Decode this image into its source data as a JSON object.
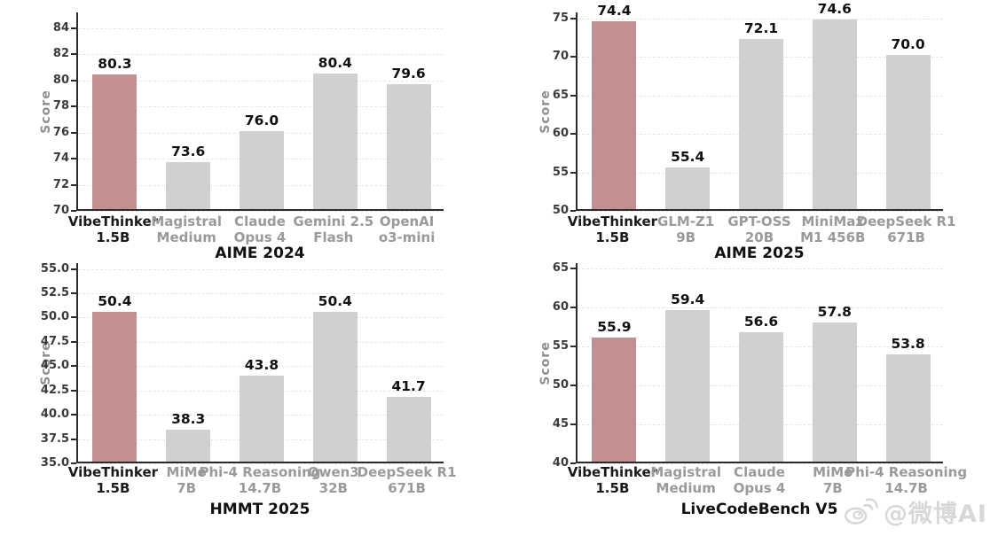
{
  "colors": {
    "background": "#ffffff",
    "highlight_bar": "#c29091",
    "default_bar": "#d0d0d0",
    "grid": "#e6e6e6",
    "axis": "#2b2b2b",
    "tick_label": "#3a3a3a",
    "axis_title": "#8f8f8f",
    "value_label": "#111111",
    "category_highlight": "#1a1a1a",
    "category_default": "#9a9a9a",
    "chart_title": "#111111",
    "watermark": "#d8d8d8"
  },
  "watermark": {
    "icon": "weibo-logo-icon",
    "text": "@微博AI"
  },
  "chart_data": [
    {
      "type": "bar",
      "title": "AIME 2024",
      "ylabel": "Score",
      "categories": [
        "VibeThinker\n1.5B",
        "Magistral\nMedium",
        "Claude\nOpus 4",
        "Gemini 2.5\nFlash",
        "OpenAI\no3-mini"
      ],
      "values": [
        80.3,
        73.6,
        76.0,
        80.4,
        79.6
      ],
      "value_labels": [
        "80.3",
        "73.6",
        "76.0",
        "80.4",
        "79.6"
      ],
      "ytick_values": [
        70,
        72,
        74,
        76,
        78,
        80,
        82,
        84
      ],
      "ytick_labels": [
        "70",
        "72",
        "74",
        "76",
        "78",
        "80",
        "82",
        "84"
      ],
      "ylim": [
        70,
        85.2
      ],
      "highlight_index": 0,
      "grid": true,
      "legend": null
    },
    {
      "type": "bar",
      "title": "AIME 2025",
      "ylabel": "Score",
      "categories": [
        "VibeThinker\n1.5B",
        "GLM-Z1\n9B",
        "GPT-OSS\n20B",
        "MiniMax\nM1 456B",
        "DeepSeek R1\n671B"
      ],
      "values": [
        74.4,
        55.4,
        72.1,
        74.6,
        70.0
      ],
      "value_labels": [
        "74.4",
        "55.4",
        "72.1",
        "74.6",
        "70.0"
      ],
      "ytick_values": [
        50,
        55,
        60,
        65,
        70,
        75
      ],
      "ytick_labels": [
        "50",
        "55",
        "60",
        "65",
        "70",
        "75"
      ],
      "ylim": [
        50,
        75.8
      ],
      "highlight_index": 0,
      "grid": true,
      "legend": null
    },
    {
      "type": "bar",
      "title": "HMMT 2025",
      "ylabel": "Score",
      "categories": [
        "VibeThinker\n1.5B",
        "MiMo\n7B",
        "Phi-4 Reasoning\n14.7B",
        "Qwen3\n32B",
        "DeepSeek R1\n671B"
      ],
      "values": [
        50.4,
        38.3,
        43.8,
        50.4,
        41.7
      ],
      "value_labels": [
        "50.4",
        "38.3",
        "43.8",
        "50.4",
        "41.7"
      ],
      "ytick_values": [
        35,
        37.5,
        40,
        42.5,
        45,
        47.5,
        50,
        52.5,
        55
      ],
      "ytick_labels": [
        "35.0",
        "37.5",
        "40.0",
        "42.5",
        "45.0",
        "47.5",
        "50.0",
        "52.5",
        "55.0"
      ],
      "ylim": [
        35,
        55.6
      ],
      "highlight_index": 0,
      "grid": true,
      "legend": null
    },
    {
      "type": "bar",
      "title": "LiveCodeBench V5",
      "ylabel": "Score",
      "categories": [
        "VibeThinker\n1.5B",
        "Magistral\nMedium",
        "Claude\nOpus 4",
        "MiMo\n7B",
        "Phi-4 Reasoning\n14.7B"
      ],
      "values": [
        55.9,
        59.4,
        56.6,
        57.8,
        53.8
      ],
      "value_labels": [
        "55.9",
        "59.4",
        "56.6",
        "57.8",
        "53.8"
      ],
      "ytick_values": [
        40,
        45,
        50,
        55,
        60,
        65
      ],
      "ytick_labels": [
        "40",
        "45",
        "50",
        "55",
        "60",
        "65"
      ],
      "ylim": [
        40,
        65.7
      ],
      "highlight_index": 0,
      "grid": true,
      "legend": null
    }
  ]
}
